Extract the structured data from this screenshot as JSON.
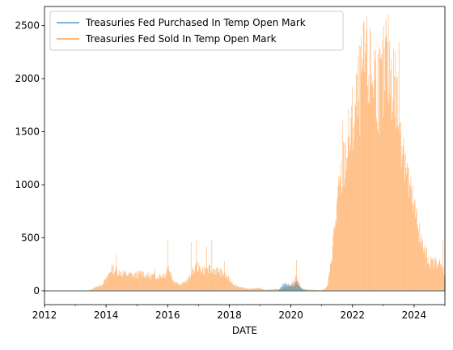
{
  "chart_data": {
    "type": "area",
    "xlabel": "DATE",
    "ylabel": "",
    "xlim": [
      "2012-01-01",
      "2025-01-01"
    ],
    "ylim": [
      -130,
      2680
    ],
    "x_ticks": [
      "2012",
      "2014",
      "2016",
      "2018",
      "2020",
      "2022",
      "2024"
    ],
    "y_ticks": [
      0,
      500,
      1000,
      1500,
      2000,
      2500
    ],
    "legend_position": "upper-left",
    "grid": false,
    "series": [
      {
        "name": "Treasuries Fed Purchased In Temp Open Mark",
        "color": "#1f77b4",
        "points": [
          [
            "2012-01",
            0
          ],
          [
            "2019-08",
            0
          ],
          [
            "2019-09",
            40
          ],
          [
            "2019-10",
            70
          ],
          [
            "2019-11",
            75
          ],
          [
            "2019-12",
            65
          ],
          [
            "2020-01",
            55
          ],
          [
            "2020-02",
            45
          ],
          [
            "2020-03",
            95
          ],
          [
            "2020-04",
            50
          ],
          [
            "2020-05",
            30
          ],
          [
            "2020-06",
            10
          ],
          [
            "2020-07",
            0
          ],
          [
            "2025-01",
            0
          ]
        ]
      },
      {
        "name": "Treasuries Fed Sold In Temp Open Mark",
        "color": "#ff7f0e",
        "points": [
          [
            "2012-01",
            0
          ],
          [
            "2013-06",
            0
          ],
          [
            "2013-09",
            40
          ],
          [
            "2013-11",
            60
          ],
          [
            "2014-01",
            120
          ],
          [
            "2014-03",
            230
          ],
          [
            "2014-06",
            190
          ],
          [
            "2014-09",
            170
          ],
          [
            "2014-12",
            160
          ],
          [
            "2015-03",
            180
          ],
          [
            "2015-06",
            150
          ],
          [
            "2015-09",
            150
          ],
          [
            "2015-12",
            170
          ],
          [
            "2016-01",
            250
          ],
          [
            "2016-03",
            110
          ],
          [
            "2016-06",
            60
          ],
          [
            "2016-09",
            120
          ],
          [
            "2016-12",
            250
          ],
          [
            "2017-03",
            210
          ],
          [
            "2017-06",
            220
          ],
          [
            "2017-09",
            200
          ],
          [
            "2017-12",
            140
          ],
          [
            "2018-03",
            60
          ],
          [
            "2018-06",
            30
          ],
          [
            "2018-09",
            20
          ],
          [
            "2018-12",
            30
          ],
          [
            "2019-03",
            10
          ],
          [
            "2019-06",
            15
          ],
          [
            "2019-09",
            20
          ],
          [
            "2020-01",
            60
          ],
          [
            "2020-03",
            150
          ],
          [
            "2020-05",
            20
          ],
          [
            "2020-09",
            10
          ],
          [
            "2021-01",
            5
          ],
          [
            "2021-03",
            40
          ],
          [
            "2021-04",
            180
          ],
          [
            "2021-05",
            420
          ],
          [
            "2021-06",
            650
          ],
          [
            "2021-07",
            880
          ],
          [
            "2021-08",
            1050
          ],
          [
            "2021-09",
            1220
          ],
          [
            "2021-10",
            1380
          ],
          [
            "2021-11",
            1480
          ],
          [
            "2021-12",
            1580
          ],
          [
            "2022-01",
            1720
          ],
          [
            "2022-02",
            1820
          ],
          [
            "2022-03",
            1950
          ],
          [
            "2022-04",
            2080
          ],
          [
            "2022-05",
            2220
          ],
          [
            "2022-06",
            2280
          ],
          [
            "2022-07",
            2240
          ],
          [
            "2022-08",
            2200
          ],
          [
            "2022-09",
            2260
          ],
          [
            "2022-10",
            2180
          ],
          [
            "2022-11",
            2100
          ],
          [
            "2022-12",
            2050
          ],
          [
            "2023-01",
            2180
          ],
          [
            "2023-02",
            2250
          ],
          [
            "2023-03",
            2300
          ],
          [
            "2023-04",
            2250
          ],
          [
            "2023-05",
            2150
          ],
          [
            "2023-06",
            1980
          ],
          [
            "2023-07",
            1800
          ],
          [
            "2023-08",
            1650
          ],
          [
            "2023-09",
            1500
          ],
          [
            "2023-10",
            1280
          ],
          [
            "2023-11",
            1050
          ],
          [
            "2023-12",
            920
          ],
          [
            "2024-01",
            820
          ],
          [
            "2024-02",
            700
          ],
          [
            "2024-03",
            580
          ],
          [
            "2024-04",
            460
          ],
          [
            "2024-05",
            400
          ],
          [
            "2024-06",
            350
          ],
          [
            "2024-07",
            300
          ],
          [
            "2024-08",
            280
          ],
          [
            "2024-09",
            280
          ],
          [
            "2024-10",
            310
          ],
          [
            "2024-11",
            260
          ],
          [
            "2024-12",
            220
          ],
          [
            "2025-01",
            160
          ]
        ],
        "spikes": [
          [
            "2014-05",
            340
          ],
          [
            "2015-08",
            210
          ],
          [
            "2016-01",
            480
          ],
          [
            "2016-10",
            460
          ],
          [
            "2016-12",
            480
          ],
          [
            "2017-04",
            420
          ],
          [
            "2017-06",
            480
          ],
          [
            "2017-11",
            280
          ],
          [
            "2020-03",
            290
          ],
          [
            "2021-09",
            1610
          ],
          [
            "2022-06",
            2330
          ],
          [
            "2022-08",
            2440
          ],
          [
            "2023-02",
            2560
          ],
          [
            "2023-07",
            2340
          ],
          [
            "2024-03",
            640
          ],
          [
            "2024-12",
            470
          ]
        ]
      }
    ]
  }
}
